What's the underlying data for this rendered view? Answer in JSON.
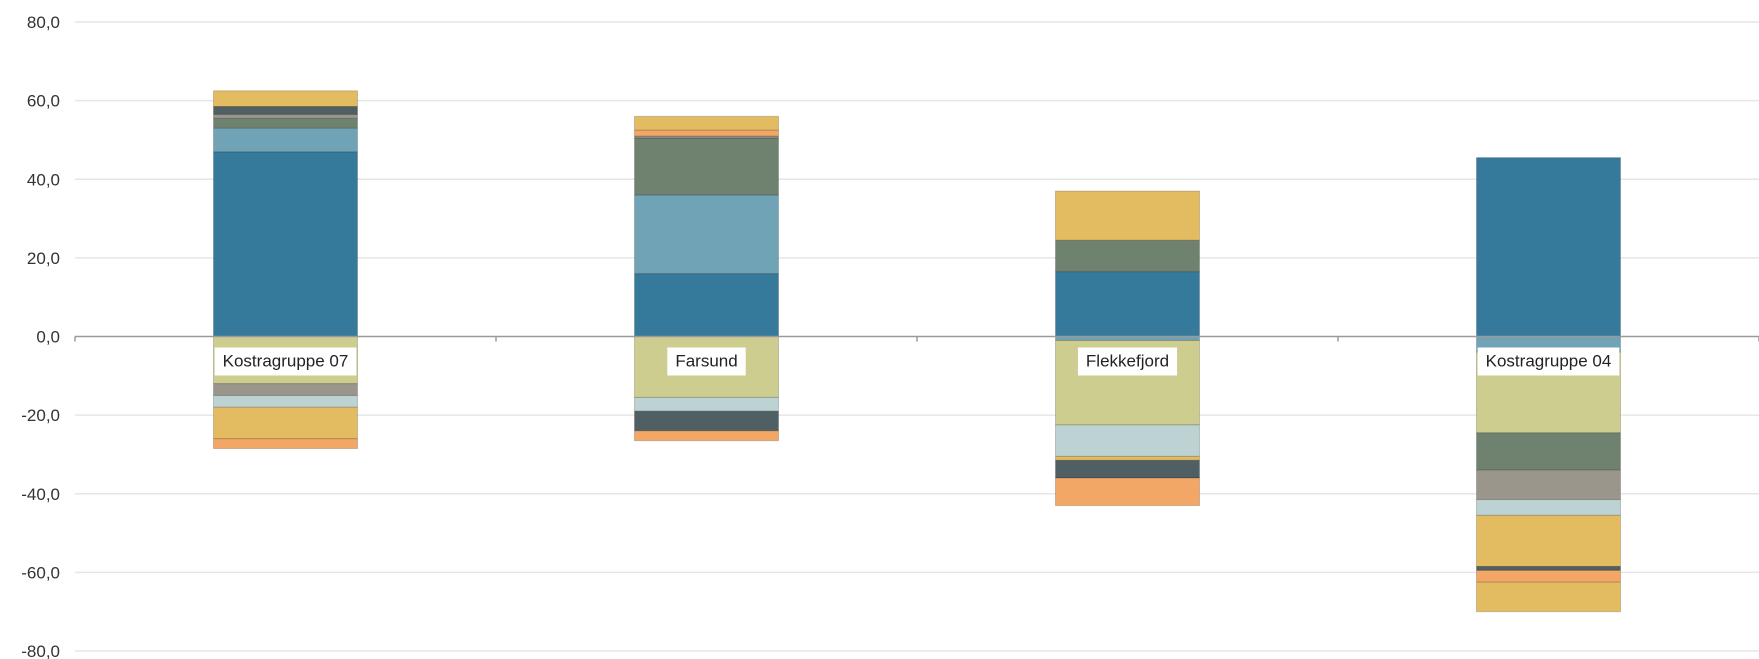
{
  "chart_data": {
    "type": "bar",
    "stacked": true,
    "categories": [
      "Kostragruppe 07",
      "Farsund",
      "Flekkefjord",
      "Kostragruppe 04"
    ],
    "ylim": [
      -80,
      80
    ],
    "yticks": [
      "80,0",
      "60,0",
      "40,0",
      "20,0",
      "0,0",
      "-20,0",
      "-40,0",
      "-60,0",
      "-80,0"
    ],
    "ytick_values": [
      80,
      60,
      40,
      20,
      0,
      -20,
      -40,
      -60,
      -80
    ],
    "grid": true,
    "stacks": [
      {
        "positive": [
          {
            "value": 47.0,
            "color": "#35799b"
          },
          {
            "value": 6.0,
            "color": "#6fa3b5"
          },
          {
            "value": 2.5,
            "color": "#6f826f"
          },
          {
            "value": 1.0,
            "color": "#9a968b"
          },
          {
            "value": 2.0,
            "color": "#4f5f63"
          },
          {
            "value": 4.0,
            "color": "#e3bc62"
          }
        ],
        "negative": [
          {
            "value": -12.0,
            "color": "#cdcd8f"
          },
          {
            "value": -3.0,
            "color": "#9a968b"
          },
          {
            "value": -3.0,
            "color": "#bdd3d3"
          },
          {
            "value": -8.0,
            "color": "#e3bc62"
          },
          {
            "value": -2.5,
            "color": "#f2a766"
          }
        ]
      },
      {
        "positive": [
          {
            "value": 16.0,
            "color": "#35799b"
          },
          {
            "value": 20.0,
            "color": "#6fa3b5"
          },
          {
            "value": 14.5,
            "color": "#6f826f"
          },
          {
            "value": 0.5,
            "color": "#9a968b"
          },
          {
            "value": 1.5,
            "color": "#f2a766"
          },
          {
            "value": 3.5,
            "color": "#e3bc62"
          }
        ],
        "negative": [
          {
            "value": -15.5,
            "color": "#cdcd8f"
          },
          {
            "value": -3.5,
            "color": "#bdd3d3"
          },
          {
            "value": -5.0,
            "color": "#4f5f63"
          },
          {
            "value": -2.5,
            "color": "#f2a766"
          }
        ]
      },
      {
        "positive": [
          {
            "value": 16.5,
            "color": "#35799b"
          },
          {
            "value": 8.0,
            "color": "#6f826f"
          },
          {
            "value": 12.5,
            "color": "#e3bc62"
          }
        ],
        "negative": [
          {
            "value": -1.0,
            "color": "#6fa3b5"
          },
          {
            "value": -21.5,
            "color": "#cdcd8f"
          },
          {
            "value": -8.0,
            "color": "#bdd3d3"
          },
          {
            "value": -1.0,
            "color": "#e3bc62"
          },
          {
            "value": -4.5,
            "color": "#4f5f63"
          },
          {
            "value": -7.0,
            "color": "#f2a766"
          }
        ]
      },
      {
        "positive": [
          {
            "value": 45.5,
            "color": "#35799b"
          }
        ],
        "negative": [
          {
            "value": -4.0,
            "color": "#6fa3b5"
          },
          {
            "value": -20.5,
            "color": "#cdcd8f"
          },
          {
            "value": -9.5,
            "color": "#6f826f"
          },
          {
            "value": -7.5,
            "color": "#9a968b"
          },
          {
            "value": -4.0,
            "color": "#bdd3d3"
          },
          {
            "value": -13.0,
            "color": "#e3bc62"
          },
          {
            "value": -1.0,
            "color": "#4f5f63"
          },
          {
            "value": -3.0,
            "color": "#f2a766"
          },
          {
            "value": -7.5,
            "color": "#e3bc62"
          }
        ]
      }
    ],
    "colors": {
      "grid": "#e6e6e6",
      "zero_line": "#9a9a9a",
      "segment_border": "#c9a24a"
    }
  }
}
